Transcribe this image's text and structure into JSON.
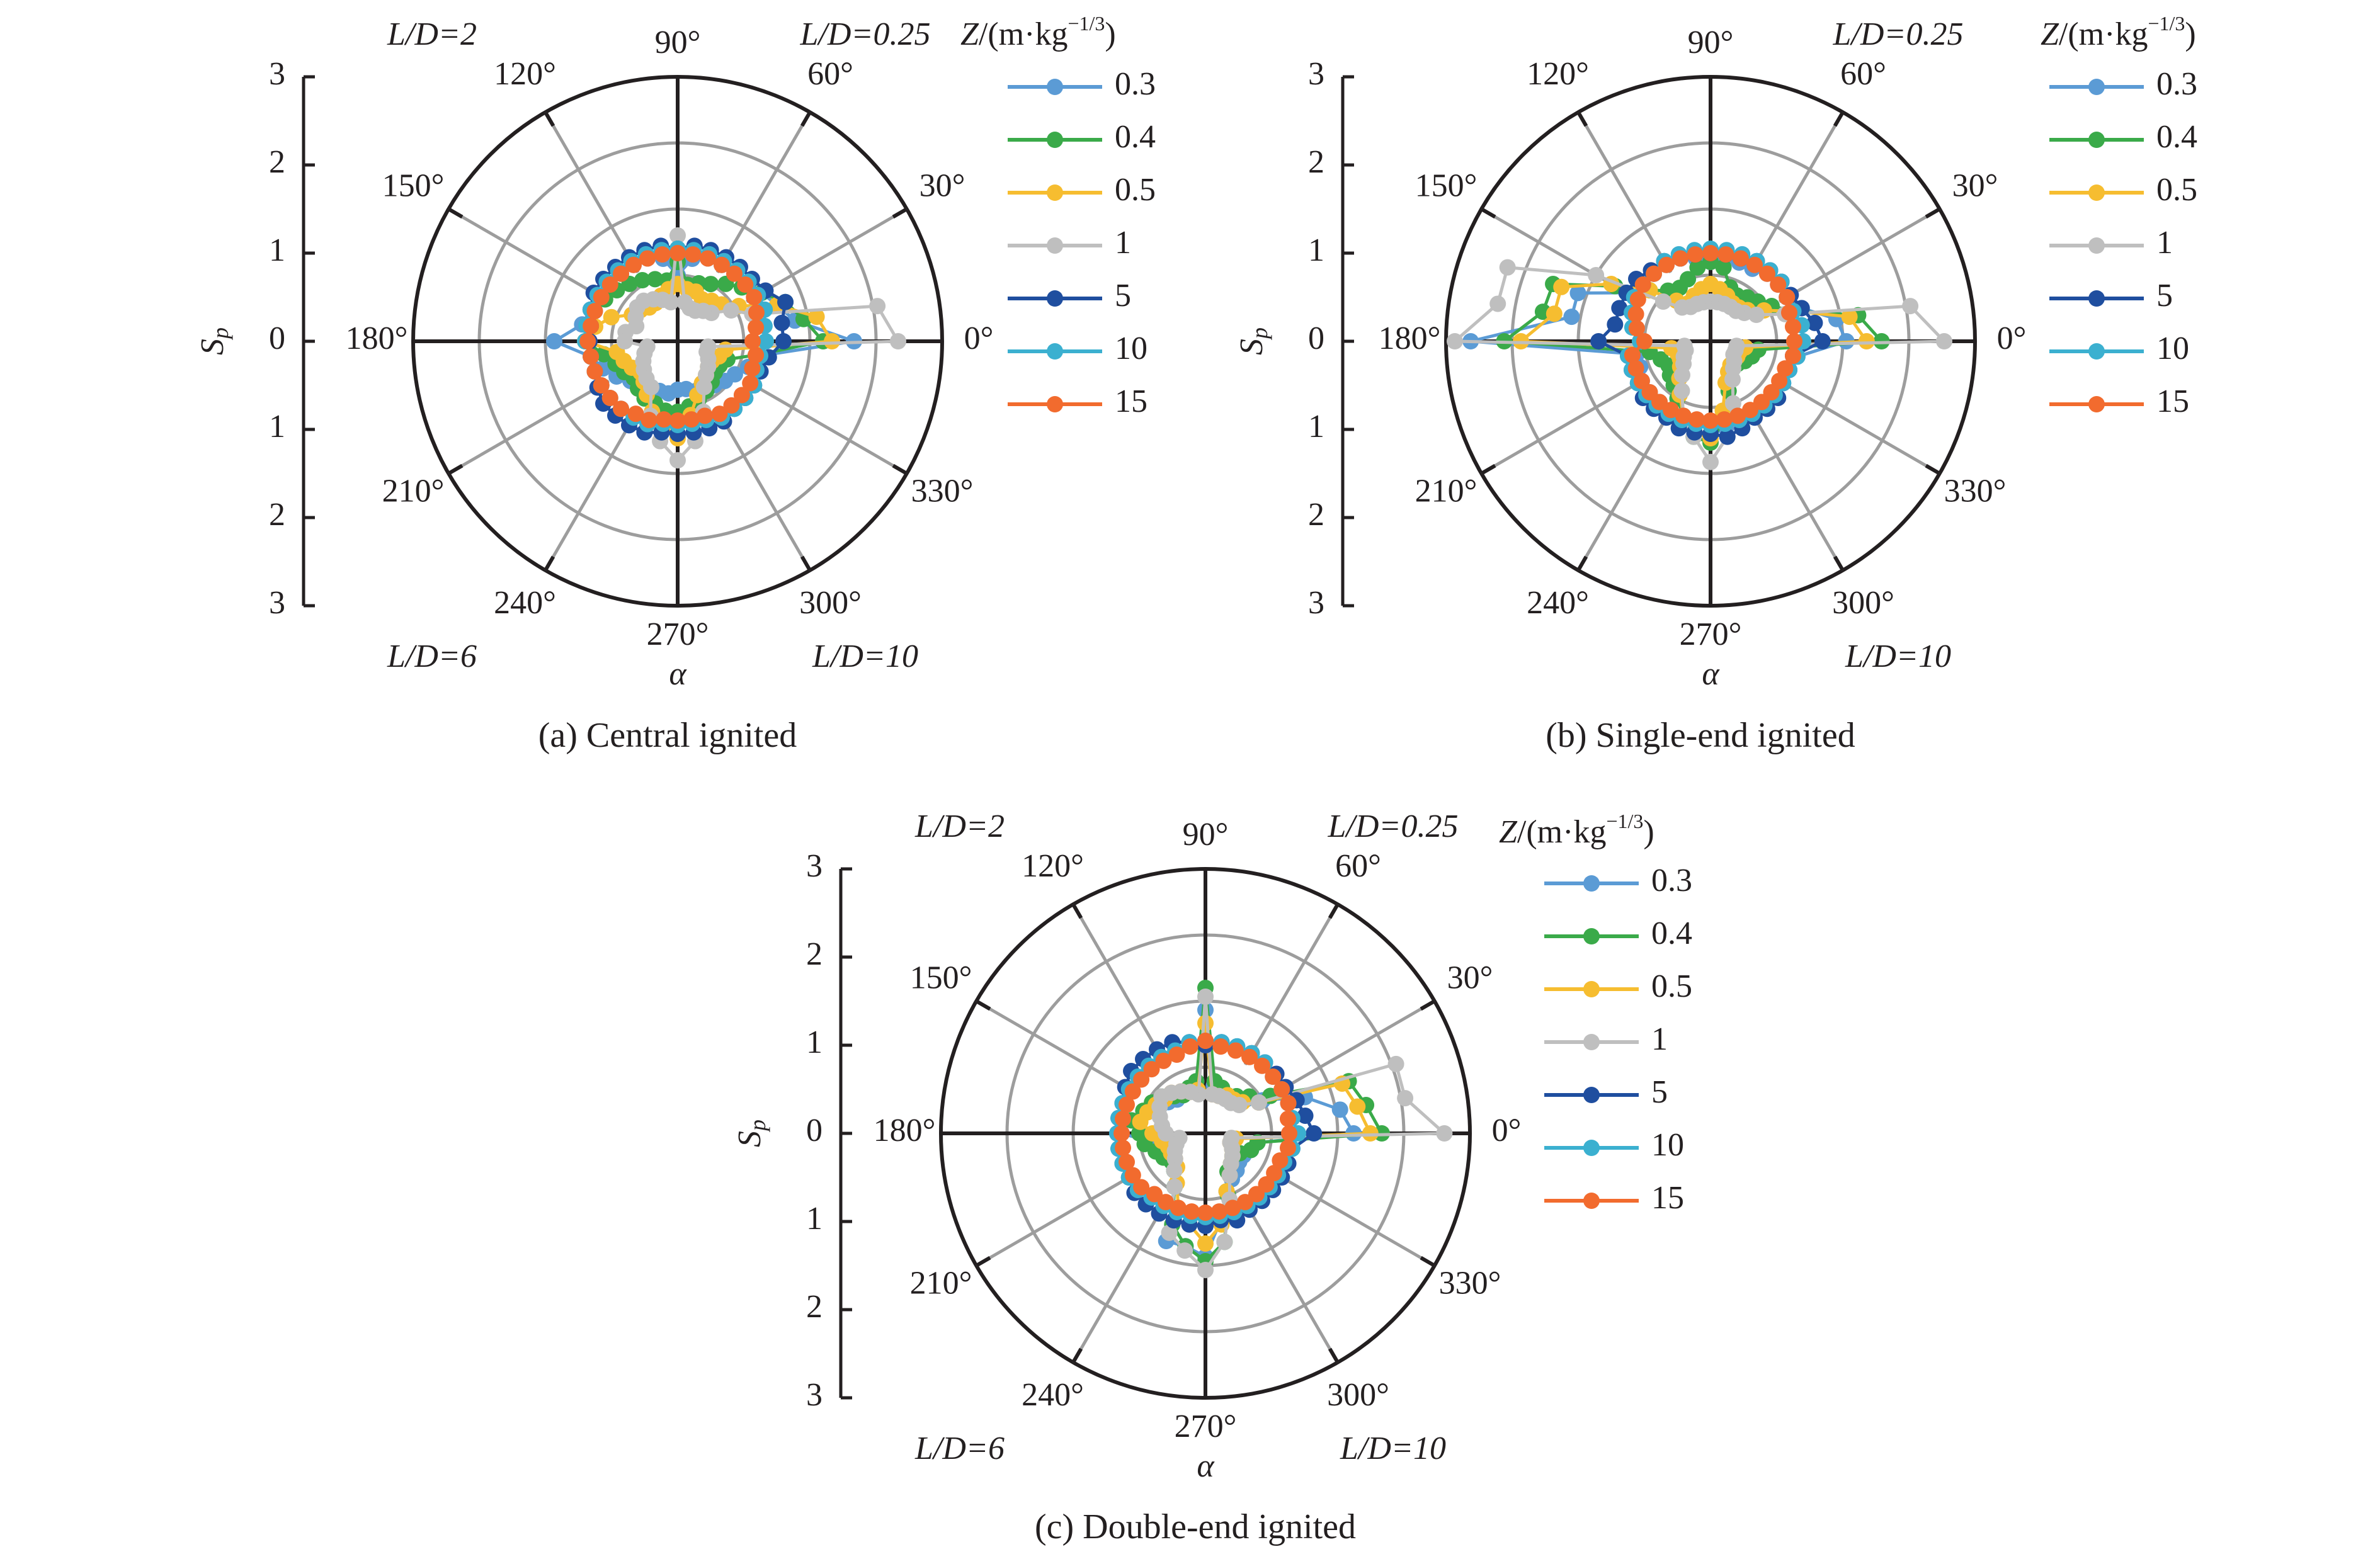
{
  "legend": {
    "title_z": "Z",
    "title_mid": "/(m·kg",
    "title_sup": "−1/3",
    "title_end": ")"
  },
  "series_colors": {
    "0.3": "#5b9bd5",
    "0.4": "#3aaa49",
    "0.5": "#f6bd30",
    "1": "#bfbfbf",
    "5": "#1f4e9f",
    "10": "#3bb0d0",
    "15": "#f26b2e"
  },
  "chart_data": [
    {
      "type": "polar-line",
      "title": "(a) Central ignited",
      "ylabel_main": "S",
      "ylabel_sub": "p",
      "xlabel": "α",
      "rlim": [
        0,
        3
      ],
      "rgrid": [
        0.75,
        1.5,
        2.25,
        3
      ],
      "radial_tick_labels": [
        "3",
        "2",
        "1",
        "0",
        "1",
        "2",
        "3"
      ],
      "angle_tick_labels": [
        "0°",
        "30°",
        "60°",
        "90°",
        "120°",
        "150°",
        "180°",
        "210°",
        "240°",
        "270°",
        "300°",
        "330°"
      ],
      "quadrant_labels": {
        "q1": "L/D=0.25",
        "q2": "L/D=2",
        "q3": "L/D=6",
        "q4": "L/D=10"
      },
      "angle_step_deg": 10,
      "series": [
        {
          "name": "0.3",
          "values": [
            2.0,
            1.35,
            1.2,
            1.1,
            1.05,
            1.05,
            1.0,
            1.0,
            0.95,
            0.75,
            0.95,
            1.0,
            1.0,
            1.0,
            1.0,
            1.0,
            1.05,
            1.1,
            1.4,
            1.0,
            0.9,
            0.8,
            0.7,
            0.65,
            0.6,
            0.6,
            0.6,
            0.55,
            0.55,
            0.6,
            0.6,
            0.65,
            0.7,
            0.75,
            0.85,
            0.95
          ]
        },
        {
          "name": "0.4",
          "values": [
            1.65,
            1.45,
            1.3,
            1.1,
            0.95,
            0.85,
            0.75,
            0.7,
            0.65,
            0.9,
            0.7,
            0.75,
            0.8,
            0.85,
            0.9,
            0.95,
            1.0,
            1.0,
            1.05,
            0.85,
            0.75,
            0.7,
            0.65,
            0.7,
            0.75,
            0.75,
            0.8,
            0.8,
            0.75,
            0.7,
            0.65,
            0.6,
            0.55,
            0.55,
            0.6,
            0.9
          ]
        },
        {
          "name": "0.5",
          "values": [
            1.75,
            1.6,
            1.2,
            0.8,
            0.65,
            0.6,
            0.55,
            0.6,
            0.6,
            0.65,
            0.6,
            0.55,
            0.5,
            0.5,
            0.55,
            0.6,
            0.8,
            0.95,
            1.05,
            0.7,
            0.65,
            0.6,
            0.55,
            0.6,
            0.7,
            0.85,
            1.0,
            1.1,
            0.85,
            0.65,
            0.55,
            0.5,
            0.45,
            0.45,
            0.5,
            0.55
          ]
        },
        {
          "name": "1",
          "values": [
            2.5,
            2.3,
            0.9,
            0.7,
            0.5,
            0.45,
            0.4,
            0.4,
            0.45,
            1.2,
            0.45,
            0.5,
            0.55,
            0.6,
            0.6,
            0.55,
            0.5,
            0.6,
            0.6,
            0.35,
            0.4,
            0.45,
            0.5,
            0.55,
            0.6,
            0.9,
            1.15,
            1.35,
            1.15,
            0.85,
            0.6,
            0.5,
            0.45,
            0.4,
            0.35,
            0.35
          ]
        },
        {
          "name": "5",
          "values": [
            1.2,
            1.2,
            1.3,
            1.15,
            1.1,
            1.1,
            1.1,
            1.1,
            1.1,
            1.05,
            1.1,
            1.1,
            1.1,
            1.1,
            1.1,
            1.1,
            1.05,
            1.0,
            1.0,
            1.0,
            1.0,
            1.05,
            1.1,
            1.1,
            1.1,
            1.1,
            1.05,
            1.05,
            1.05,
            1.05,
            1.05,
            1.0,
            1.0,
            1.0,
            1.0,
            1.05
          ]
        },
        {
          "name": "10",
          "values": [
            1.0,
            1.0,
            1.05,
            1.05,
            1.05,
            1.05,
            1.05,
            1.05,
            1.05,
            1.05,
            1.05,
            1.05,
            1.05,
            1.05,
            1.05,
            1.05,
            1.05,
            1.05,
            1.05,
            1.0,
            1.0,
            1.0,
            1.0,
            1.0,
            1.0,
            1.0,
            0.95,
            0.95,
            0.95,
            0.95,
            1.0,
            1.0,
            1.0,
            1.0,
            0.95,
            0.95
          ]
        },
        {
          "name": "15",
          "values": [
            0.85,
            0.9,
            0.95,
            1.0,
            1.0,
            1.0,
            1.0,
            1.0,
            1.0,
            1.0,
            1.0,
            1.0,
            1.0,
            1.0,
            1.0,
            1.0,
            1.0,
            1.0,
            1.02,
            1.0,
            1.0,
            1.0,
            1.0,
            1.0,
            0.95,
            0.95,
            0.9,
            0.9,
            0.9,
            0.9,
            0.95,
            0.95,
            0.95,
            0.95,
            0.9,
            0.9
          ]
        }
      ]
    },
    {
      "type": "polar-line",
      "title": "(b) Single-end ignited",
      "ylabel_main": "S",
      "ylabel_sub": "p",
      "xlabel": "α",
      "rlim": [
        0,
        3
      ],
      "rgrid": [
        0.75,
        1.5,
        2.25,
        3
      ],
      "radial_tick_labels": [
        "3",
        "2",
        "1",
        "0",
        "1",
        "2",
        "3"
      ],
      "angle_tick_labels": [
        "0°",
        "30°",
        "60°",
        "90°",
        "120°",
        "150°",
        "180°",
        "210°",
        "240°",
        "270°",
        "300°",
        "330°"
      ],
      "quadrant_labels": {
        "q1": "L/D=0.25",
        "q4": "L/D=10"
      },
      "angle_step_deg": 10,
      "series": [
        {
          "name": "0.3",
          "values": [
            1.54,
            1.45,
            1.1,
            1.0,
            1.0,
            1.0,
            0.95,
            0.95,
            0.95,
            0.9,
            0.95,
            1.0,
            1.0,
            1.0,
            1.05,
            1.1,
            1.6,
            1.6,
            2.72,
            0.85,
            0.85,
            0.9,
            0.9,
            0.9,
            0.95,
            1.05,
            1.05,
            1.05,
            1.0,
            0.95,
            0.95,
            0.95,
            0.95,
            0.95,
            0.95,
            1.0
          ]
        },
        {
          "name": "0.4",
          "values": [
            1.94,
            1.7,
            1.0,
            0.8,
            0.7,
            0.65,
            0.6,
            0.65,
            0.85,
            0.9,
            0.85,
            0.75,
            0.7,
            0.75,
            0.9,
            1.25,
            1.9,
            1.93,
            2.34,
            0.7,
            0.6,
            0.55,
            0.6,
            0.65,
            0.75,
            0.9,
            1.1,
            1.15,
            0.9,
            0.6,
            0.45,
            0.4,
            0.4,
            0.45,
            0.5,
            0.55
          ]
        },
        {
          "name": "0.5",
          "values": [
            1.77,
            1.6,
            1.0,
            0.7,
            0.55,
            0.5,
            0.5,
            0.55,
            0.6,
            0.65,
            0.6,
            0.55,
            0.5,
            0.6,
            0.9,
            1.3,
            1.8,
            1.8,
            2.15,
            0.45,
            0.4,
            0.4,
            0.45,
            0.55,
            0.7,
            0.9,
            1.05,
            1.1,
            0.8,
            0.5,
            0.4,
            0.35,
            0.35,
            0.35,
            0.35,
            0.4
          ]
        },
        {
          "name": "1",
          "values": [
            2.65,
            2.3,
            0.9,
            0.6,
            0.5,
            0.45,
            0.45,
            0.45,
            0.45,
            0.45,
            0.45,
            0.45,
            0.45,
            0.5,
            0.7,
            1.5,
            2.45,
            2.45,
            2.9,
            0.3,
            0.3,
            0.35,
            0.4,
            0.5,
            0.65,
            0.9,
            1.1,
            1.37,
            1.1,
            0.75,
            0.5,
            0.4,
            0.35,
            0.3,
            0.3,
            0.3
          ]
        },
        {
          "name": "5",
          "values": [
            1.27,
            1.2,
            1.1,
            1.05,
            1.05,
            1.05,
            1.05,
            1.0,
            1.0,
            1.0,
            1.0,
            1.0,
            1.05,
            1.05,
            1.1,
            1.1,
            1.1,
            1.1,
            1.27,
            0.95,
            0.95,
            0.95,
            1.0,
            1.0,
            1.0,
            1.05,
            1.05,
            1.05,
            1.1,
            1.05,
            1.0,
            1.0,
            1.0,
            0.95,
            0.95,
            0.95
          ]
        },
        {
          "name": "10",
          "values": [
            1.05,
            1.05,
            1.0,
            1.0,
            1.05,
            1.05,
            1.05,
            1.05,
            1.05,
            1.05,
            1.05,
            1.05,
            1.05,
            1.0,
            1.0,
            1.0,
            0.95,
            0.9,
            0.8,
            0.95,
            0.95,
            0.95,
            0.95,
            0.95,
            0.95,
            0.95,
            0.95,
            0.95,
            0.95,
            0.95,
            0.95,
            0.95,
            0.95,
            0.95,
            0.95,
            1.0
          ]
        },
        {
          "name": "15",
          "values": [
            0.95,
            0.95,
            0.95,
            1.0,
            1.0,
            1.0,
            1.0,
            1.0,
            1.0,
            1.0,
            1.0,
            1.0,
            1.0,
            1.0,
            1.0,
            0.95,
            0.9,
            0.85,
            0.75,
            0.9,
            0.9,
            0.9,
            0.9,
            0.9,
            0.9,
            0.9,
            0.9,
            0.9,
            0.9,
            0.9,
            0.9,
            0.9,
            0.9,
            0.9,
            0.9,
            0.95
          ]
        }
      ]
    },
    {
      "type": "polar-line",
      "title": "(c) Double-end ignited",
      "ylabel_main": "S",
      "ylabel_sub": "p",
      "xlabel": "α",
      "rlim": [
        0,
        3
      ],
      "rgrid": [
        0.75,
        1.5,
        2.25,
        3
      ],
      "radial_tick_labels": [
        "3",
        "2",
        "1",
        "0",
        "1",
        "2",
        "3"
      ],
      "angle_tick_labels": [
        "0°",
        "30°",
        "60°",
        "90°",
        "120°",
        "150°",
        "180°",
        "210°",
        "240°",
        "270°",
        "300°",
        "330°"
      ],
      "quadrant_labels": {
        "q1": "L/D=0.25",
        "q2": "L/D=2",
        "q3": "L/D=6",
        "q4": "L/D=10"
      },
      "angle_step_deg": 10,
      "series": [
        {
          "name": "0.3",
          "values": [
            1.68,
            1.55,
            1.2,
            0.75,
            0.6,
            0.55,
            0.5,
            0.5,
            0.55,
            1.4,
            0.6,
            0.55,
            0.5,
            0.5,
            0.55,
            0.6,
            0.7,
            0.85,
            0.95,
            0.6,
            0.55,
            0.5,
            0.5,
            0.55,
            0.7,
            1.3,
            1.3,
            1.4,
            1.0,
            0.7,
            0.6,
            0.55,
            0.5,
            0.5,
            0.55,
            0.6
          ]
        },
        {
          "name": "0.4",
          "values": [
            2.0,
            1.85,
            1.73,
            0.85,
            0.65,
            0.55,
            0.5,
            0.55,
            0.6,
            1.65,
            0.6,
            0.55,
            0.5,
            0.55,
            0.65,
            0.7,
            0.75,
            0.85,
            0.75,
            0.7,
            0.6,
            0.55,
            0.5,
            0.55,
            0.7,
            1.1,
            1.3,
            1.45,
            1.25,
            0.75,
            0.5,
            0.45,
            0.4,
            0.45,
            0.55,
            0.6
          ]
        },
        {
          "name": "0.5",
          "values": [
            1.87,
            1.75,
            1.65,
            0.7,
            0.55,
            0.5,
            0.5,
            0.45,
            0.45,
            1.25,
            0.5,
            0.5,
            0.55,
            0.6,
            0.6,
            0.65,
            0.7,
            0.75,
            0.6,
            0.5,
            0.45,
            0.45,
            0.45,
            0.5,
            0.65,
            0.9,
            1.05,
            1.25,
            1.05,
            0.7,
            0.55,
            0.45,
            0.4,
            0.35,
            0.3,
            0.35
          ]
        },
        {
          "name": "1",
          "values": [
            2.71,
            2.3,
            2.3,
            0.7,
            0.5,
            0.45,
            0.45,
            0.45,
            0.45,
            1.55,
            0.45,
            0.5,
            0.55,
            0.6,
            0.65,
            0.6,
            0.55,
            0.5,
            0.45,
            0.3,
            0.35,
            0.4,
            0.45,
            0.55,
            0.7,
            1.2,
            1.35,
            1.55,
            1.25,
            0.8,
            0.55,
            0.45,
            0.4,
            0.35,
            0.3,
            0.3
          ]
        },
        {
          "name": "5",
          "values": [
            1.23,
            1.15,
            1.1,
            1.05,
            1.05,
            1.05,
            1.05,
            1.05,
            1.05,
            1.0,
            1.05,
            1.1,
            1.1,
            1.1,
            1.1,
            1.05,
            1.0,
            1.0,
            1.0,
            1.0,
            1.0,
            1.0,
            1.05,
            1.05,
            1.05,
            1.05,
            1.05,
            1.05,
            1.0,
            1.05,
            1.0,
            1.0,
            1.0,
            1.0,
            1.0,
            1.0
          ]
        },
        {
          "name": "10",
          "values": [
            1.05,
            1.0,
            1.0,
            1.0,
            1.0,
            1.05,
            1.05,
            1.05,
            1.05,
            1.05,
            1.05,
            1.0,
            1.0,
            1.0,
            1.0,
            1.0,
            1.0,
            1.0,
            1.0,
            1.0,
            1.0,
            1.0,
            1.0,
            0.95,
            0.95,
            0.95,
            0.95,
            0.95,
            0.95,
            0.95,
            0.95,
            0.95,
            0.95,
            0.95,
            0.95,
            1.0
          ]
        },
        {
          "name": "15",
          "values": [
            0.95,
            0.95,
            1.0,
            1.0,
            1.0,
            1.0,
            1.0,
            1.0,
            1.0,
            1.05,
            1.0,
            0.95,
            0.95,
            0.95,
            0.95,
            0.95,
            0.95,
            0.95,
            0.95,
            0.95,
            0.95,
            0.95,
            0.95,
            0.9,
            0.9,
            0.9,
            0.9,
            0.9,
            0.9,
            0.9,
            0.9,
            0.9,
            0.9,
            0.9,
            0.9,
            0.95
          ]
        }
      ]
    }
  ]
}
